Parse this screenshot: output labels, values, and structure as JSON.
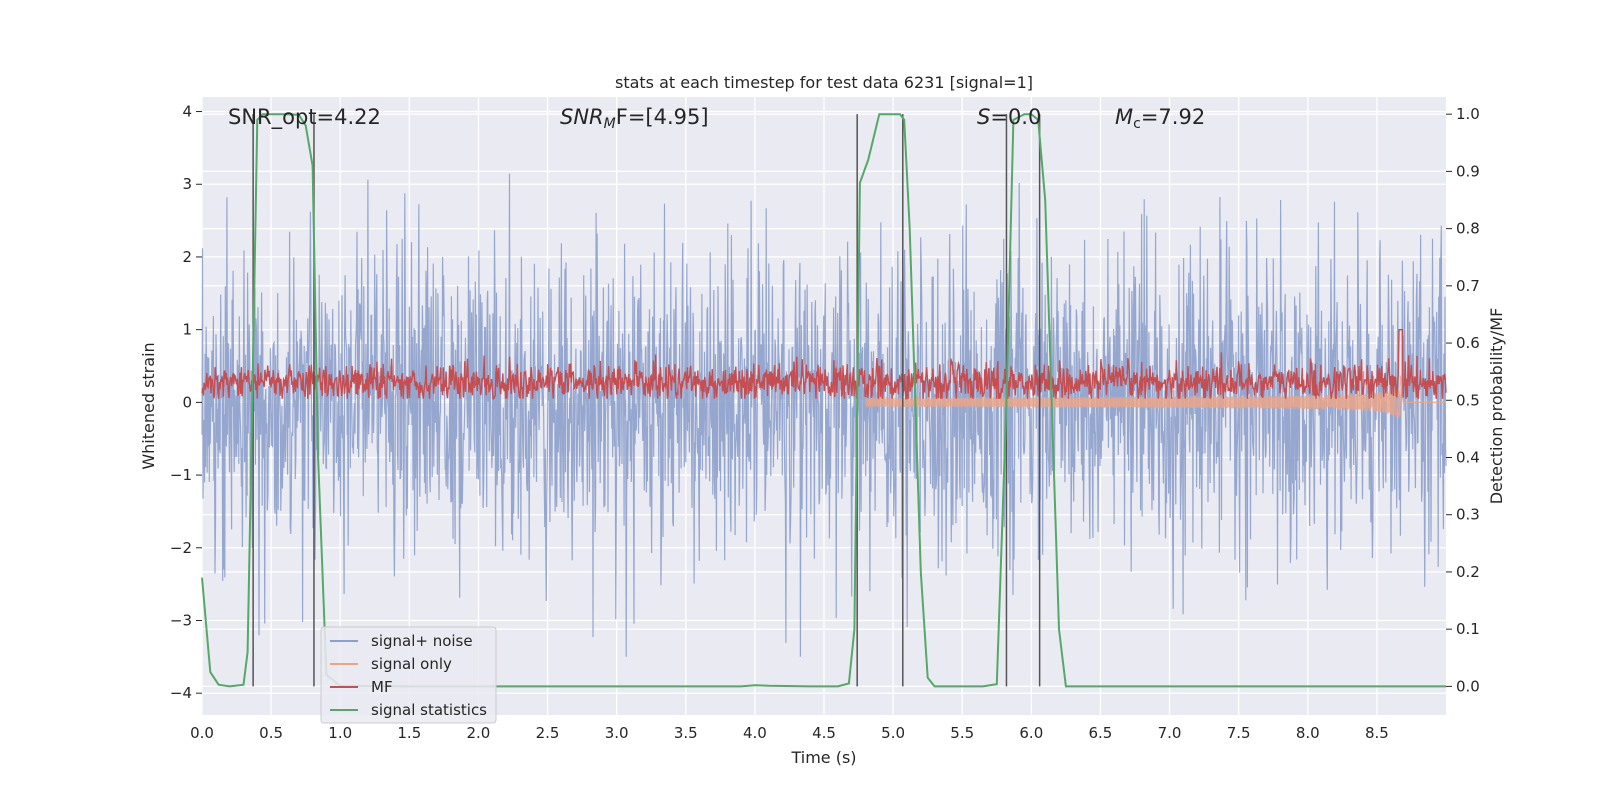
{
  "chart_data": {
    "type": "line",
    "title": "stats at each timestep for test data 6231 [signal=1]",
    "xlabel": "Time (s)",
    "ylabel_left": "Whitened strain",
    "ylabel_right": "Detection probability/MF",
    "xlim": [
      0,
      9.0
    ],
    "ylim_left": [
      -4.3,
      4.2
    ],
    "ylim_right": [
      -0.05,
      1.03
    ],
    "x_ticks": [
      "0.0",
      "0.5",
      "1.0",
      "1.5",
      "2.0",
      "2.5",
      "3.0",
      "3.5",
      "4.0",
      "4.5",
      "5.0",
      "5.5",
      "6.0",
      "6.5",
      "7.0",
      "7.5",
      "8.0",
      "8.5"
    ],
    "y_ticks_left": [
      "−4",
      "−3",
      "−2",
      "−1",
      "0",
      "1",
      "2",
      "3",
      "4"
    ],
    "y_ticks_right": [
      "0.0",
      "0.1",
      "0.2",
      "0.3",
      "0.4",
      "0.5",
      "0.6",
      "0.7",
      "0.8",
      "0.9",
      "1.0"
    ],
    "annotations": {
      "snr_opt": "SNR_opt=4.22",
      "snr_mf_main": "SNR",
      "snr_mf_sub": "M",
      "snr_mf_rest": "F=[4.95]",
      "s_main": "S",
      "s_rest": "=0.0",
      "mc_main": "M",
      "mc_sub": "c",
      "mc_rest": "=7.92"
    },
    "series": [
      {
        "name": "signal+ noise",
        "color": "#8da0cb",
        "description_axis": "left",
        "std": 1.0,
        "amplitude_range": [
          -3.5,
          3.5
        ]
      },
      {
        "name": "signal only",
        "color": "#e9a58a",
        "axis": "left",
        "chirp_end_time": 8.67,
        "peak_amplitude": 0.55
      },
      {
        "name": "MF",
        "color": "#c44e52",
        "axis": "left",
        "baseline": 0.28,
        "range": [
          0.05,
          1.0
        ]
      },
      {
        "name": "signal statistics",
        "color": "#55a868",
        "axis": "right",
        "x": [
          0.0,
          0.06,
          0.12,
          0.2,
          0.3,
          0.33,
          0.36,
          0.4,
          0.44,
          0.5,
          0.6,
          0.7,
          0.75,
          0.8,
          0.84,
          0.9,
          1.0,
          1.5,
          2.0,
          2.5,
          3.0,
          3.5,
          3.9,
          4.0,
          4.1,
          4.4,
          4.6,
          4.68,
          4.72,
          4.76,
          4.82,
          4.9,
          5.0,
          5.05,
          5.08,
          5.12,
          5.2,
          5.25,
          5.3,
          5.5,
          5.65,
          5.75,
          5.82,
          5.87,
          5.95,
          6.0,
          6.05,
          6.1,
          6.2,
          6.25,
          6.4,
          7.0,
          8.0,
          9.0
        ],
        "y": [
          0.19,
          0.025,
          0.003,
          0.0,
          0.003,
          0.06,
          0.45,
          0.99,
          1.0,
          1.0,
          1.0,
          0.999,
          0.98,
          0.91,
          0.4,
          0.02,
          0.001,
          0.0,
          0.0,
          0.0,
          0.0,
          0.0,
          0.0,
          0.002,
          0.001,
          0.0,
          0.0,
          0.005,
          0.1,
          0.88,
          0.92,
          1.0,
          1.0,
          1.0,
          0.99,
          0.8,
          0.2,
          0.015,
          0.0,
          0.0,
          0.0,
          0.004,
          0.5,
          0.99,
          1.0,
          1.0,
          0.99,
          0.85,
          0.1,
          0.0,
          0.0,
          0.0,
          0.0,
          0.0
        ]
      },
      {
        "name": "markers",
        "color": "#555555",
        "axis": "right",
        "x": [
          0.37,
          0.81,
          4.74,
          5.07,
          5.82,
          6.06
        ]
      }
    ],
    "legend": {
      "location": "lower-left",
      "entries": [
        {
          "label": "signal+ noise",
          "color": "#8da0cb"
        },
        {
          "label": "signal only",
          "color": "#e9a58a"
        },
        {
          "label": "MF",
          "color": "#c44e52"
        },
        {
          "label": "signal statistics",
          "color": "#55a868"
        }
      ]
    }
  }
}
